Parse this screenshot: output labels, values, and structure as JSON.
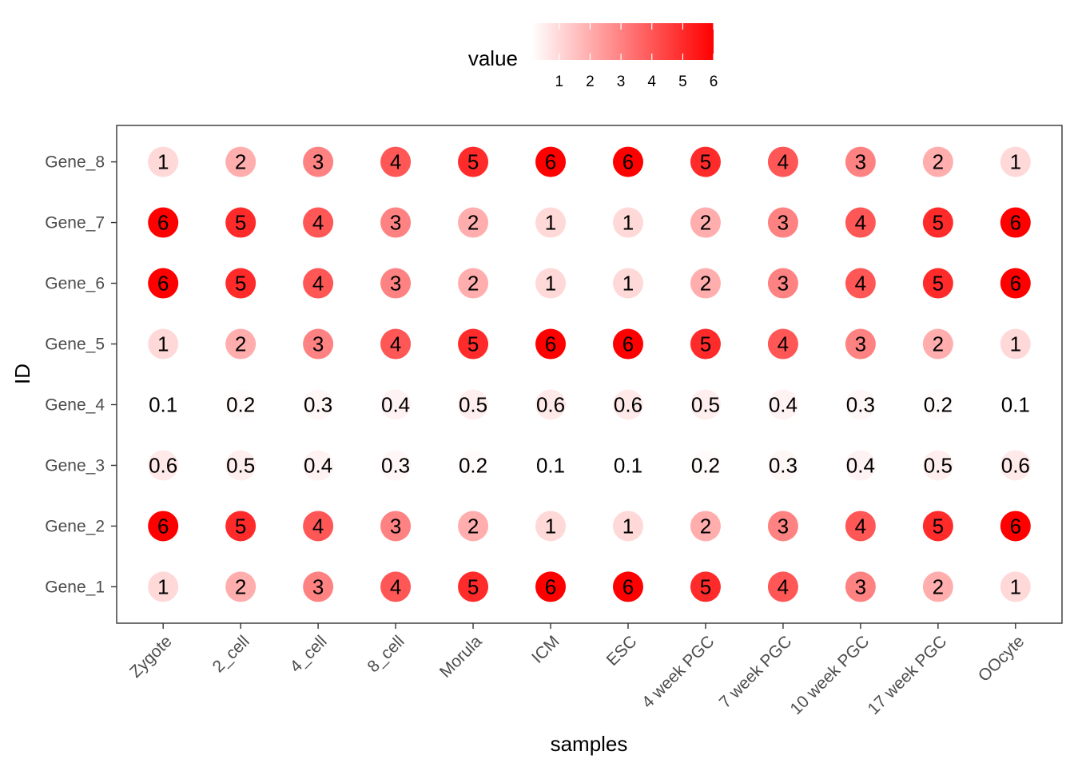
{
  "chart_data": {
    "type": "scatter",
    "xlabel": "samples",
    "ylabel": "ID",
    "legend": {
      "title": "value",
      "position": "top",
      "ticks": [
        "1",
        "2",
        "3",
        "4",
        "5",
        "6"
      ],
      "range": [
        0.1,
        6
      ],
      "color_low": "#ffffff",
      "color_high": "#ff0000"
    },
    "samples": [
      "Zygote",
      "2_cell",
      "4_cell",
      "8_cell",
      "Morula",
      "ICM",
      "ESC",
      "4 week PGC",
      "7 week PGC",
      "10 week PGC",
      "17 week PGC",
      "OOcyte"
    ],
    "genes": [
      "Gene_1",
      "Gene_2",
      "Gene_3",
      "Gene_4",
      "Gene_5",
      "Gene_6",
      "Gene_7",
      "Gene_8"
    ],
    "values": {
      "Gene_8": [
        "1",
        "2",
        "3",
        "4",
        "5",
        "6",
        "6",
        "5",
        "4",
        "3",
        "2",
        "1"
      ],
      "Gene_7": [
        "6",
        "5",
        "4",
        "3",
        "2",
        "1",
        "1",
        "2",
        "3",
        "4",
        "5",
        "6"
      ],
      "Gene_6": [
        "6",
        "5",
        "4",
        "3",
        "2",
        "1",
        "1",
        "2",
        "3",
        "4",
        "5",
        "6"
      ],
      "Gene_5": [
        "1",
        "2",
        "3",
        "4",
        "5",
        "6",
        "6",
        "5",
        "4",
        "3",
        "2",
        "1"
      ],
      "Gene_4": [
        "0.1",
        "0.2",
        "0.3",
        "0.4",
        "0.5",
        "0.6",
        "0.6",
        "0.5",
        "0.4",
        "0.3",
        "0.2",
        "0.1"
      ],
      "Gene_3": [
        "0.6",
        "0.5",
        "0.4",
        "0.3",
        "0.2",
        "0.1",
        "0.1",
        "0.2",
        "0.3",
        "0.4",
        "0.5",
        "0.6"
      ],
      "Gene_2": [
        "6",
        "5",
        "4",
        "3",
        "2",
        "1",
        "1",
        "2",
        "3",
        "4",
        "5",
        "6"
      ],
      "Gene_1": [
        "1",
        "2",
        "3",
        "4",
        "5",
        "6",
        "6",
        "5",
        "4",
        "3",
        "2",
        "1"
      ]
    }
  }
}
